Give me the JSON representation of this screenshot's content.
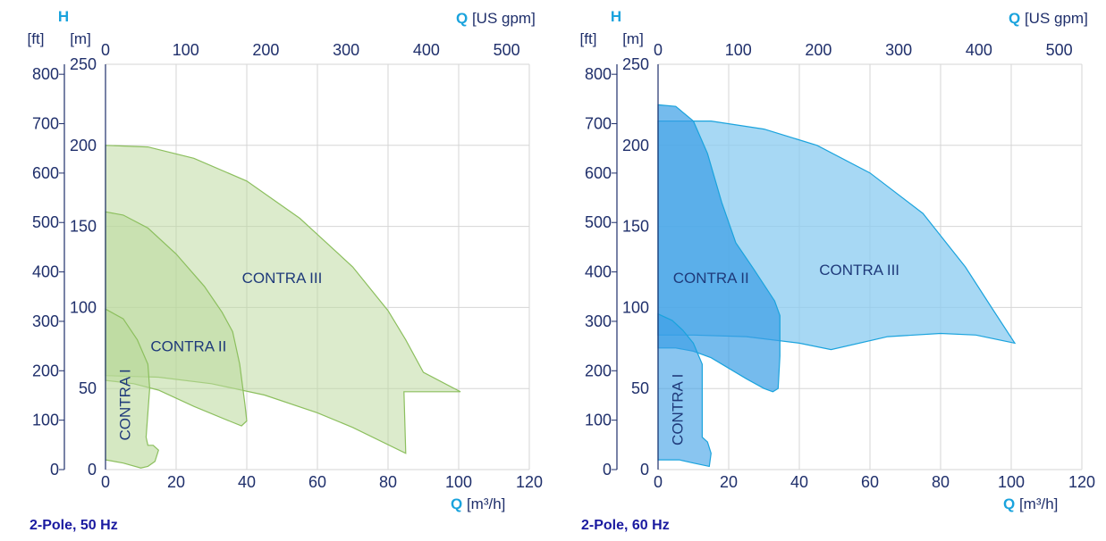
{
  "chart_data": [
    {
      "type": "area",
      "caption": "2-Pole, 50 Hz",
      "x_axis_bottom": {
        "label": "Q",
        "unit": "[m³/h]",
        "ticks": [
          0,
          20,
          40,
          60,
          80,
          100,
          120
        ],
        "range": [
          0,
          120
        ]
      },
      "x_axis_top": {
        "label": "Q",
        "unit": "[US gpm]",
        "ticks": [
          0,
          100,
          200,
          300,
          400,
          500
        ],
        "range": [
          0,
          528.3
        ]
      },
      "y_axis_left_m": {
        "label": "H",
        "unit": "[m]",
        "ticks": [
          0,
          50,
          100,
          150,
          200,
          250
        ],
        "range": [
          0,
          250
        ]
      },
      "y_axis_left_ft": {
        "unit": "[ft]",
        "ticks": [
          0,
          100,
          200,
          300,
          400,
          500,
          600,
          700,
          800
        ],
        "range": [
          0,
          820.2
        ]
      },
      "grid": true,
      "colors": {
        "line": "#8cbf5e",
        "fill": "#b9d89a"
      },
      "series": [
        {
          "name": "CONTRA III",
          "label_at": [
            50,
            115
          ],
          "label_rotation": 0,
          "points": [
            [
              0,
              200
            ],
            [
              12,
              199
            ],
            [
              25,
              192
            ],
            [
              40,
              178
            ],
            [
              55,
              155
            ],
            [
              70,
              125
            ],
            [
              80,
              98
            ],
            [
              85,
              80
            ],
            [
              90,
              60
            ],
            [
              100.5,
              48
            ],
            [
              96,
              48
            ],
            [
              85,
              48
            ],
            [
              84.5,
              48
            ],
            [
              85,
              10
            ],
            [
              70,
              26
            ],
            [
              60,
              35
            ],
            [
              45,
              46
            ],
            [
              30,
              53
            ],
            [
              15,
              57
            ],
            [
              0,
              58
            ]
          ]
        },
        {
          "name": "CONTRA II",
          "label_at": [
            23.5,
            73
          ],
          "label_rotation": 0,
          "points": [
            [
              0,
              159
            ],
            [
              5,
              157
            ],
            [
              12,
              149
            ],
            [
              20,
              133
            ],
            [
              28,
              113
            ],
            [
              33,
              97
            ],
            [
              36,
              85
            ],
            [
              38,
              65
            ],
            [
              39.5,
              40
            ],
            [
              40,
              30
            ],
            [
              38.5,
              27
            ],
            [
              35,
              30
            ],
            [
              25,
              39
            ],
            [
              15,
              49
            ],
            [
              8,
              53
            ],
            [
              0,
              55
            ]
          ]
        },
        {
          "name": "CONTRA I",
          "label_at": [
            7,
            40
          ],
          "label_rotation": -90,
          "points": [
            [
              0,
              99
            ],
            [
              5,
              93
            ],
            [
              9,
              80
            ],
            [
              12,
              65
            ],
            [
              12.5,
              50
            ],
            [
              12,
              35
            ],
            [
              11.5,
              20
            ],
            [
              12,
              15
            ],
            [
              13.5,
              15
            ],
            [
              15,
              12
            ],
            [
              14,
              5
            ],
            [
              12,
              2
            ],
            [
              10,
              1
            ],
            [
              5,
              4
            ],
            [
              0,
              6
            ]
          ]
        }
      ]
    },
    {
      "type": "area",
      "caption": "2-Pole, 60 Hz",
      "x_axis_bottom": {
        "label": "Q",
        "unit": "[m³/h]",
        "ticks": [
          0,
          20,
          40,
          60,
          80,
          100,
          120
        ],
        "range": [
          0,
          120
        ]
      },
      "x_axis_top": {
        "label": "Q",
        "unit": "[US gpm]",
        "ticks": [
          0,
          100,
          200,
          300,
          400,
          500
        ],
        "range": [
          0,
          528.3
        ]
      },
      "y_axis_left_m": {
        "label": "H",
        "unit": "[m]",
        "ticks": [
          0,
          50,
          100,
          150,
          200,
          250
        ],
        "range": [
          0,
          250
        ]
      },
      "y_axis_left_ft": {
        "unit": "[ft]",
        "ticks": [
          0,
          100,
          200,
          300,
          400,
          500,
          600,
          700,
          800
        ],
        "range": [
          0,
          820.2
        ]
      },
      "grid": true,
      "colors": {
        "line": "#1aa3dd",
        "fill_light": "#8acbf0",
        "fill_dark": "#3a9ee6"
      },
      "series": [
        {
          "name": "CONTRA III",
          "label_at": [
            57,
            120
          ],
          "label_rotation": 0,
          "points": [
            [
              0,
              215
            ],
            [
              15,
              215
            ],
            [
              30,
              210
            ],
            [
              45,
              200
            ],
            [
              60,
              183
            ],
            [
              75,
              158
            ],
            [
              87,
              125
            ],
            [
              95,
              98
            ],
            [
              101,
              78
            ],
            [
              90,
              83
            ],
            [
              80,
              84
            ],
            [
              65,
              82
            ],
            [
              49,
              74
            ],
            [
              40,
              78
            ],
            [
              25,
              82
            ],
            [
              10,
              83
            ],
            [
              0,
              83
            ]
          ]
        },
        {
          "name": "CONTRA II",
          "label_at": [
            15,
            115
          ],
          "label_rotation": 0,
          "points": [
            [
              0,
              225
            ],
            [
              5,
              224
            ],
            [
              10,
              215
            ],
            [
              14,
              195
            ],
            [
              18,
              165
            ],
            [
              22,
              140
            ],
            [
              27,
              124
            ],
            [
              33,
              104
            ],
            [
              34.5,
              95
            ],
            [
              34.5,
              70
            ],
            [
              34,
              50
            ],
            [
              32.5,
              48
            ],
            [
              30,
              50
            ],
            [
              25,
              56
            ],
            [
              15,
              69
            ],
            [
              10,
              73
            ],
            [
              5,
              75
            ],
            [
              0,
              75
            ]
          ]
        },
        {
          "name": "CONTRA I",
          "label_at": [
            7,
            37
          ],
          "label_rotation": -90,
          "points": [
            [
              0,
              96
            ],
            [
              4,
              92
            ],
            [
              7,
              86
            ],
            [
              10,
              78
            ],
            [
              12.5,
              65
            ],
            [
              12.5,
              40
            ],
            [
              12.5,
              20
            ],
            [
              14,
              17
            ],
            [
              15,
              10
            ],
            [
              14.5,
              2
            ],
            [
              10,
              4
            ],
            [
              6,
              6
            ],
            [
              0,
              6
            ]
          ]
        }
      ]
    }
  ]
}
